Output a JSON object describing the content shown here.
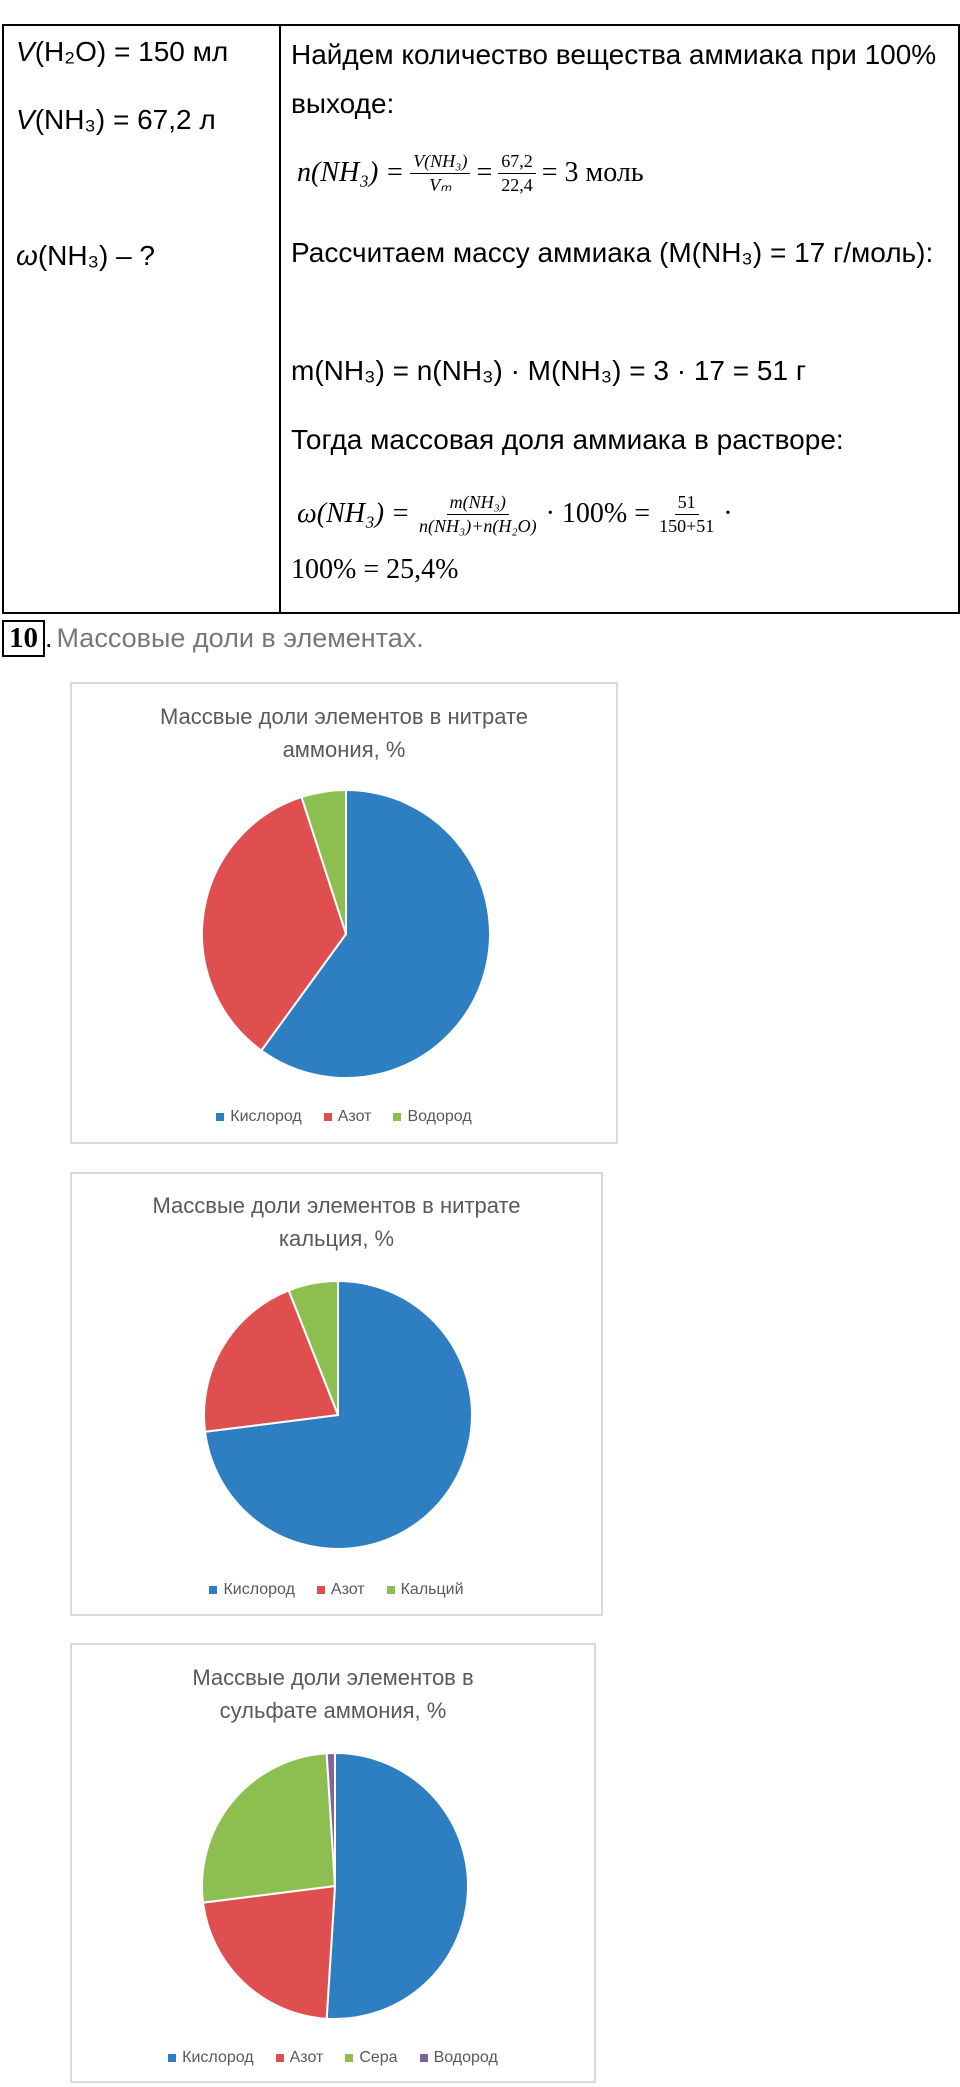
{
  "table": {
    "left": [
      {
        "var": "V",
        "rest": "(H₂O) = 150 мл"
      },
      {
        "var": "V",
        "rest": "(NH₃) = 67,2 л"
      },
      {
        "var": "ω",
        "rest": "(NH₃) – ?"
      }
    ],
    "right": {
      "line1": "Найдем количество вещества аммиака при 100% выходе:",
      "formula1": {
        "lhs": "n(NH₃) =",
        "frac1": {
          "num": "V(NH₃)",
          "den": "Vₘ"
        },
        "eq": "=",
        "frac2": {
          "num": "67,2",
          "den": "22,4"
        },
        "rhs": "= 3 моль"
      },
      "line2": "Рассчитаем массу аммиака (M(NH₃) = 17 г/моль):",
      "line3": "m(NH₃) = n(NH₃) · M(NH₃) = 3 · 17 = 51 г",
      "line4": "Тогда массовая доля аммиака в растворе:",
      "formula2": {
        "lhs": "ω(NH₃) =",
        "frac1": {
          "num": "m(NH₃)",
          "den": "n(NH₃)+n(H₂O)"
        },
        "mid": "· 100% =",
        "frac2": {
          "num": "51",
          "den": "150+51"
        },
        "tail": "·",
        "line2": "100% = 25,4%"
      }
    }
  },
  "task": {
    "number": "10",
    "separator": ".",
    "text": "Массовые доли в элементах."
  },
  "chart_data": [
    {
      "type": "pie",
      "title": "Массвые доли элементов в нитрате аммония, %",
      "categories": [
        "Кислород",
        "Азот",
        "Водород"
      ],
      "values": [
        60,
        35,
        5
      ],
      "colors": [
        "#2e7fc1",
        "#e04f4f",
        "#8cbf4f"
      ]
    },
    {
      "type": "pie",
      "title": "Массвые доли элементов в нитрате кальция, %",
      "categories": [
        "Кислород",
        "Азот",
        "Кальций"
      ],
      "values": [
        73,
        21,
        6
      ],
      "colors": [
        "#2e7fc1",
        "#e04f4f",
        "#8cbf4f"
      ]
    },
    {
      "type": "pie",
      "title": "Массвые доли элементов в сульфате аммония, %",
      "categories": [
        "Кислород",
        "Азот",
        "Сера",
        "Водород"
      ],
      "values": [
        51,
        22,
        26,
        1
      ],
      "colors": [
        "#2e7fc1",
        "#e04f4f",
        "#8cbf4f",
        "#8064a2"
      ]
    }
  ]
}
